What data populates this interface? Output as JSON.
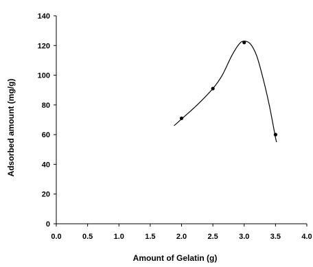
{
  "chart_data": {
    "type": "scatter",
    "title": "",
    "xlabel": "Amount of Gelatin (g)",
    "ylabel": "Adsorbed amount (mg/g)",
    "xlim": [
      0,
      4
    ],
    "ylim": [
      0,
      140
    ],
    "x_ticks": [
      "0.0",
      "0.5",
      "1.0",
      "1.5",
      "2.0",
      "2.5",
      "3.0",
      "3.5",
      "4.0"
    ],
    "y_ticks": [
      "0",
      "20",
      "40",
      "60",
      "80",
      "100",
      "120",
      "140"
    ],
    "grid": false,
    "legend": "none",
    "series": [
      {
        "points": [
          {
            "x": 2.0,
            "y": 71
          },
          {
            "x": 2.5,
            "y": 91
          },
          {
            "x": 3.0,
            "y": 122
          },
          {
            "x": 3.5,
            "y": 60
          }
        ],
        "color": "#000000"
      }
    ],
    "fitted_curve": {
      "color": "#000000",
      "points": [
        {
          "x": 1.88,
          "y": 66
        },
        {
          "x": 2.0,
          "y": 70.5
        },
        {
          "x": 2.25,
          "y": 80
        },
        {
          "x": 2.5,
          "y": 91
        },
        {
          "x": 2.65,
          "y": 100
        },
        {
          "x": 2.8,
          "y": 113
        },
        {
          "x": 2.92,
          "y": 121
        },
        {
          "x": 3.0,
          "y": 123
        },
        {
          "x": 3.1,
          "y": 121
        },
        {
          "x": 3.2,
          "y": 113
        },
        {
          "x": 3.3,
          "y": 98
        },
        {
          "x": 3.4,
          "y": 80
        },
        {
          "x": 3.5,
          "y": 58
        },
        {
          "x": 3.52,
          "y": 55
        }
      ]
    }
  }
}
